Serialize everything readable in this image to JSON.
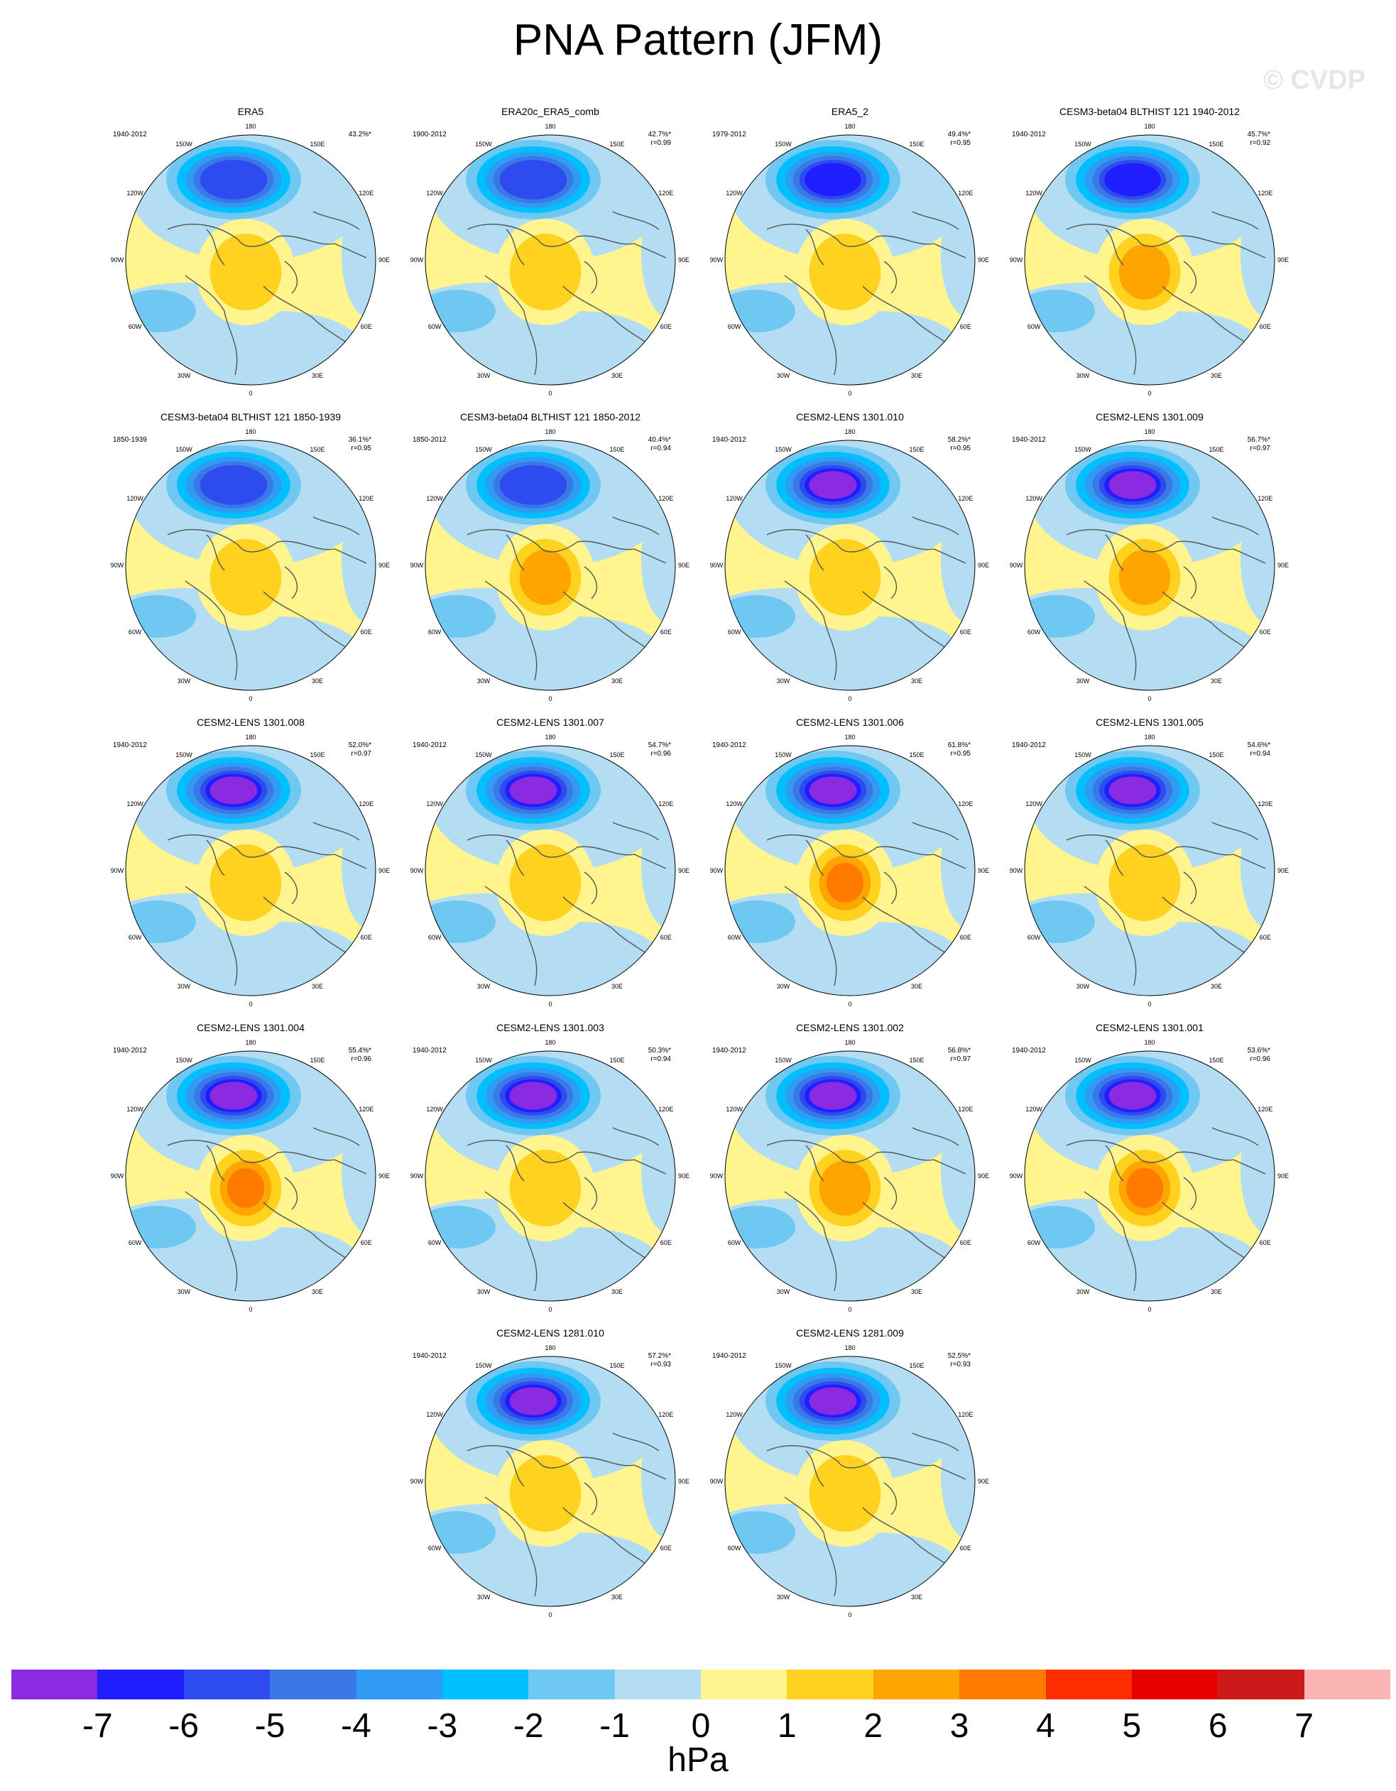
{
  "title": "PNA Pattern (JFM)",
  "watermark": "© CVDP",
  "colors": {
    "background": "#ffffff",
    "land_outline": "#555555",
    "levels": {
      "-7": "#8a2be2",
      "-6": "#1e1eff",
      "-5": "#2d4bef",
      "-4": "#3a78e8",
      "-3": "#2f9bf2",
      "-2": "#00bfff",
      "-1": "#6fc8f2",
      "0": "#b3ddf2",
      "1": "#fff58f",
      "2": "#ffd21f",
      "3": "#ffa500",
      "4": "#ff7a00",
      "5": "#ff2e00",
      "6": "#e60000",
      "7": "#cc1a1a",
      "8": "#fbb4b4"
    }
  },
  "lon_labels": [
    "180",
    "150E",
    "120E",
    "90E",
    "60E",
    "30E",
    "0",
    "30W",
    "60W",
    "90W",
    "120W",
    "150W"
  ],
  "panels": [
    {
      "name": "ERA5",
      "years": "1940-2012",
      "pct": "43.2%*",
      "r": "",
      "low": -5,
      "high": 2
    },
    {
      "name": "ERA20c_ERA5_comb",
      "years": "1900-2012",
      "pct": "42.7%*",
      "r": "r=0.99",
      "low": -5,
      "high": 2
    },
    {
      "name": "ERA5_2",
      "years": "1979-2012",
      "pct": "49.4%*",
      "r": "r=0.95",
      "low": -6,
      "high": 2
    },
    {
      "name": "CESM3-beta04 BLTHIST 121 1940-2012",
      "years": "1940-2012",
      "pct": "45.7%*",
      "r": "r=0.92",
      "low": -6,
      "high": 3
    },
    {
      "name": "CESM3-beta04 BLTHIST 121 1850-1939",
      "years": "1850-1939",
      "pct": "36.1%*",
      "r": "r=0.95",
      "low": -5,
      "high": 2
    },
    {
      "name": "CESM3-beta04 BLTHIST 121 1850-2012",
      "years": "1850-2012",
      "pct": "40.4%*",
      "r": "r=0.94",
      "low": -5,
      "high": 3
    },
    {
      "name": "CESM2-LENS 1301.010",
      "years": "1940-2012",
      "pct": "58.2%*",
      "r": "r=0.95",
      "low": -7,
      "high": 2
    },
    {
      "name": "CESM2-LENS 1301.009",
      "years": "1940-2012",
      "pct": "56.7%*",
      "r": "r=0.97",
      "low": -7,
      "high": 3
    },
    {
      "name": "CESM2-LENS 1301.008",
      "years": "1940-2012",
      "pct": "52.0%*",
      "r": "r=0.97",
      "low": -7,
      "high": 2
    },
    {
      "name": "CESM2-LENS 1301.007",
      "years": "1940-2012",
      "pct": "54.7%*",
      "r": "r=0.96",
      "low": -7,
      "high": 2
    },
    {
      "name": "CESM2-LENS 1301.006",
      "years": "1940-2012",
      "pct": "61.8%*",
      "r": "r=0.95",
      "low": -7,
      "high": 4
    },
    {
      "name": "CESM2-LENS 1301.005",
      "years": "1940-2012",
      "pct": "54.6%*",
      "r": "r=0.94",
      "low": -7,
      "high": 2
    },
    {
      "name": "CESM2-LENS 1301.004",
      "years": "1940-2012",
      "pct": "55.4%*",
      "r": "r=0.96",
      "low": -7,
      "high": 4
    },
    {
      "name": "CESM2-LENS 1301.003",
      "years": "1940-2012",
      "pct": "50.3%*",
      "r": "r=0.94",
      "low": -7,
      "high": 2
    },
    {
      "name": "CESM2-LENS 1301.002",
      "years": "1940-2012",
      "pct": "56.8%*",
      "r": "r=0.97",
      "low": -7,
      "high": 3
    },
    {
      "name": "CESM2-LENS 1301.001",
      "years": "1940-2012",
      "pct": "53.6%*",
      "r": "r=0.96",
      "low": -7,
      "high": 4
    },
    {
      "name": "CESM2-LENS 1281.010",
      "years": "1940-2012",
      "pct": "57.2%*",
      "r": "r=0.93",
      "low": -7,
      "high": 2
    },
    {
      "name": "CESM2-LENS 1281.009",
      "years": "1940-2012",
      "pct": "52.5%*",
      "r": "r=0.93",
      "low": -7,
      "high": 2
    }
  ],
  "colorbar": {
    "ticks": [
      "-7",
      "-6",
      "-5",
      "-4",
      "-3",
      "-2",
      "-1",
      "0",
      "1",
      "2",
      "3",
      "4",
      "5",
      "6",
      "7"
    ],
    "unit": "hPa"
  }
}
